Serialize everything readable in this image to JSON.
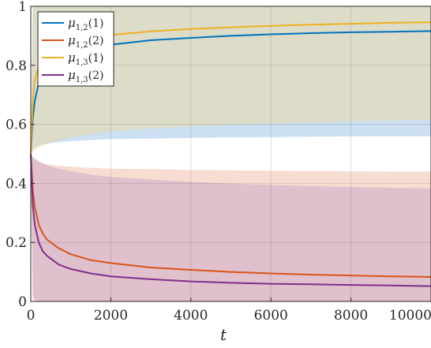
{
  "chart_data": {
    "type": "line",
    "title": "",
    "xlabel": "t",
    "ylabel": "",
    "xlim": [
      0,
      10000
    ],
    "ylim": [
      0,
      1
    ],
    "grid": true,
    "legend_placement": "top-left",
    "x_ticks": [
      {
        "value": 0,
        "label": "0"
      },
      {
        "value": 2000,
        "label": "2000"
      },
      {
        "value": 4000,
        "label": "4000"
      },
      {
        "value": 6000,
        "label": "6000"
      },
      {
        "value": 8000,
        "label": "8000"
      },
      {
        "value": 10000,
        "label": "10000"
      }
    ],
    "y_ticks": [
      {
        "value": 0,
        "label": "0"
      },
      {
        "value": 0.2,
        "label": "0.2"
      },
      {
        "value": 0.4,
        "label": "0.4"
      },
      {
        "value": 0.6,
        "label": "0.6"
      },
      {
        "value": 0.8,
        "label": "0.8"
      },
      {
        "value": 1,
        "label": "1"
      }
    ],
    "series": [
      {
        "legend_base": "μ",
        "legend_sub": "1,2",
        "legend_arg": "(1)",
        "color": "#0072bd",
        "x": [
          0,
          50,
          100,
          200,
          300,
          400,
          500,
          700,
          1000,
          1500,
          2000,
          3000,
          4000,
          5000,
          6000,
          7000,
          8000,
          9000,
          10000
        ],
        "y": [
          0.5,
          0.62,
          0.68,
          0.74,
          0.77,
          0.79,
          0.8,
          0.82,
          0.84,
          0.86,
          0.87,
          0.885,
          0.893,
          0.9,
          0.905,
          0.909,
          0.912,
          0.914,
          0.916
        ],
        "band_upper": [
          0.5,
          1,
          1,
          1,
          1,
          1,
          1,
          1,
          1,
          1,
          1,
          1,
          1,
          1,
          1,
          1,
          1,
          1,
          1
        ],
        "band_lower": [
          0.5,
          0.515,
          0.52,
          0.527,
          0.531,
          0.535,
          0.537,
          0.54,
          0.543,
          0.547,
          0.55,
          0.552,
          0.554,
          0.556,
          0.557,
          0.558,
          0.559,
          0.56,
          0.56
        ],
        "band_color": "#7fb2dc"
      },
      {
        "legend_base": "μ",
        "legend_sub": "1,2",
        "legend_arg": "(2)",
        "color": "#d95319",
        "x": [
          0,
          50,
          100,
          200,
          300,
          400,
          500,
          700,
          1000,
          1500,
          2000,
          3000,
          4000,
          5000,
          6000,
          7000,
          8000,
          9000,
          10000
        ],
        "y": [
          0.5,
          0.38,
          0.32,
          0.26,
          0.23,
          0.21,
          0.2,
          0.18,
          0.16,
          0.14,
          0.13,
          0.115,
          0.107,
          0.1,
          0.095,
          0.091,
          0.088,
          0.085,
          0.083
        ],
        "band_upper": [
          0.5,
          0.485,
          0.48,
          0.473,
          0.469,
          0.465,
          0.463,
          0.46,
          0.457,
          0.453,
          0.45,
          0.448,
          0.446,
          0.444,
          0.443,
          0.442,
          0.441,
          0.44,
          0.44
        ],
        "band_lower": [
          0.5,
          0,
          0,
          0,
          0,
          0,
          0,
          0,
          0,
          0,
          0,
          0,
          0,
          0,
          0,
          0,
          0,
          0,
          0
        ],
        "band_color": "#eca98c"
      },
      {
        "legend_base": "μ",
        "legend_sub": "1,3",
        "legend_arg": "(1)",
        "color": "#edb120",
        "x": [
          0,
          50,
          100,
          200,
          300,
          400,
          500,
          700,
          1000,
          1500,
          2000,
          3000,
          4000,
          5000,
          6000,
          7000,
          8000,
          9000,
          10000
        ],
        "y": [
          0.5,
          0.68,
          0.75,
          0.8,
          0.83,
          0.845,
          0.855,
          0.87,
          0.88,
          0.893,
          0.903,
          0.915,
          0.923,
          0.929,
          0.934,
          0.938,
          0.941,
          0.944,
          0.946
        ],
        "band_upper": [
          0.5,
          1,
          1,
          1,
          1,
          1,
          1,
          1,
          1,
          1,
          1,
          1,
          1,
          1,
          1,
          1,
          1,
          1,
          1
        ],
        "band_lower": [
          0.5,
          0.51,
          0.512,
          0.52,
          0.527,
          0.533,
          0.538,
          0.546,
          0.555,
          0.567,
          0.575,
          0.586,
          0.593,
          0.599,
          0.603,
          0.607,
          0.61,
          0.613,
          0.615
        ],
        "band_color": "#f6d88f"
      },
      {
        "legend_base": "μ",
        "legend_sub": "1,3",
        "legend_arg": "(2)",
        "color": "#7e2f8e",
        "x": [
          0,
          50,
          100,
          200,
          300,
          400,
          500,
          700,
          1000,
          1500,
          2000,
          3000,
          4000,
          5000,
          6000,
          7000,
          8000,
          9000,
          10000
        ],
        "y": [
          0.5,
          0.33,
          0.26,
          0.2,
          0.17,
          0.155,
          0.145,
          0.125,
          0.11,
          0.095,
          0.085,
          0.075,
          0.068,
          0.063,
          0.06,
          0.058,
          0.056,
          0.054,
          0.052
        ],
        "band_upper": [
          0.5,
          0.49,
          0.485,
          0.475,
          0.468,
          0.462,
          0.457,
          0.45,
          0.442,
          0.43,
          0.422,
          0.413,
          0.405,
          0.399,
          0.395,
          0.391,
          0.388,
          0.385,
          0.383
        ],
        "band_lower": [
          0.5,
          0.02,
          0.005,
          0,
          0,
          0,
          0,
          0,
          0,
          0,
          0,
          0,
          0,
          0,
          0,
          0,
          0,
          0,
          0
        ],
        "band_color": "#be97c6"
      }
    ]
  }
}
